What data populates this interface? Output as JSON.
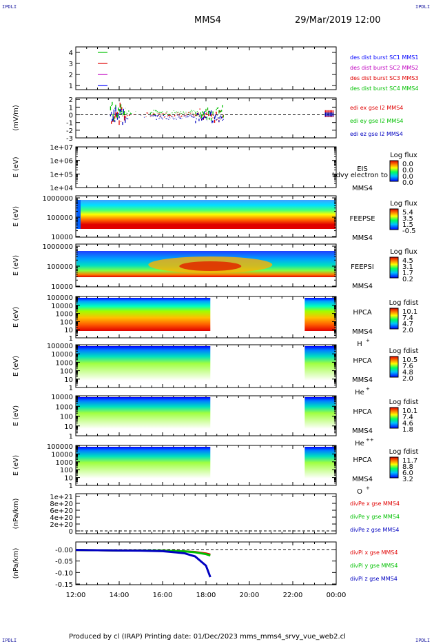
{
  "corner_labels": {
    "top_left": "IPDLI",
    "top_right": "IPDLI",
    "bottom_left": "IPDLI",
    "bottom_right": "IPDLI"
  },
  "title": {
    "spacecraft": "MMS4",
    "datetime": "29/Mar/2019 12:00"
  },
  "footer": "Produced by cl (IRAP)   Printing date: 01/Dec/2023   mms_mms4_srvy_vue_web2.cl",
  "colors": {
    "red": "#e00000",
    "green": "#00c000",
    "blue": "#0000c0",
    "magenta": "#c000c0"
  },
  "chart_data": [
    {
      "type": "line",
      "panel": "burst",
      "yticks": [
        "4",
        "3",
        "2",
        "1"
      ],
      "series": [
        {
          "name": "des dist burst SC1 MMS1",
          "color": "#0000ff",
          "level": 1
        },
        {
          "name": "des dist burst SC2 MMS2",
          "color": "#c000c0",
          "level": 2
        },
        {
          "name": "des dist burst SC3 MMS3",
          "color": "#e00000",
          "level": 3
        },
        {
          "name": "des dist burst SC4 MMS4",
          "color": "#00c000",
          "level": 4
        }
      ]
    },
    {
      "type": "line",
      "panel": "edi",
      "ylabel": "(mV/m)",
      "yticks": [
        "2",
        "1",
        "0",
        "-1",
        "-2",
        "-3"
      ],
      "ylim": [
        -3,
        2.2
      ],
      "series": [
        {
          "name": "edi ex gse l2 MMS4",
          "color": "#e00000"
        },
        {
          "name": "edi ey gse l2 MMS4",
          "color": "#00c000"
        },
        {
          "name": "edi ez gse l2 MMS4",
          "color": "#0000c0"
        }
      ]
    },
    {
      "type": "heatmap",
      "panel": "eis",
      "ylabel": "E (eV)",
      "yticks": [
        "1e+07",
        "1e+06",
        "1e+05",
        "1e+04"
      ],
      "labels": [
        "EIS",
        "MMS4"
      ],
      "overlay_label": "Ldvy electron to",
      "colorbar": {
        "title": "Log flux",
        "ticks": [
          "0.0",
          "0.0",
          "0.0",
          "0.0"
        ]
      }
    },
    {
      "type": "heatmap",
      "panel": "feepse",
      "ylabel": "E (eV)",
      "yticks": [
        "1000000",
        "100000",
        "10000"
      ],
      "labels": [
        "FEEPSE",
        "MMS4"
      ],
      "colorbar": {
        "title": "Log flux",
        "ticks": [
          "5.4",
          "3.5",
          "1.5",
          "-0.5"
        ]
      }
    },
    {
      "type": "heatmap",
      "panel": "feepsi",
      "ylabel": "E (eV)",
      "yticks": [
        "1000000",
        "100000",
        "10000"
      ],
      "labels": [
        "FEEPSI",
        "MMS4"
      ],
      "colorbar": {
        "title": "Log flux",
        "ticks": [
          "4.5",
          "3.1",
          "1.7",
          "0.2"
        ]
      }
    },
    {
      "type": "heatmap",
      "panel": "hpca-h",
      "ylabel": "E (eV)",
      "yticks": [
        "100000",
        "10000",
        "1000",
        "100",
        "10",
        "1"
      ],
      "labels": [
        "HPCA",
        "MMS4",
        "H",
        "+"
      ],
      "colorbar": {
        "title": "Log fdist",
        "ticks": [
          "10.1",
          "7.4",
          "4.7",
          "2.0"
        ]
      }
    },
    {
      "type": "heatmap",
      "panel": "hpca-he",
      "ylabel": "E (eV)",
      "yticks": [
        "100000",
        "10000",
        "1000",
        "100",
        "10",
        "1"
      ],
      "labels": [
        "HPCA",
        "MMS4",
        "He",
        "+"
      ],
      "colorbar": {
        "title": "Log fdist",
        "ticks": [
          "10.5",
          "7.6",
          "4.8",
          "2.0"
        ]
      }
    },
    {
      "type": "heatmap",
      "panel": "hpca-he2",
      "ylabel": "E (eV)",
      "yticks": [
        "10000",
        "1000",
        "100",
        "10",
        "1"
      ],
      "labels": [
        "HPCA",
        "MMS4",
        "He",
        "++"
      ],
      "colorbar": {
        "title": "Log fdist",
        "ticks": [
          "10.1",
          "7.4",
          "4.6",
          "1.8"
        ]
      }
    },
    {
      "type": "heatmap",
      "panel": "hpca-o",
      "ylabel": "E (eV)",
      "yticks": [
        "100000",
        "10000",
        "1000",
        "100",
        "10",
        "1"
      ],
      "labels": [
        "HPCA",
        "MMS4",
        "O",
        "+"
      ],
      "colorbar": {
        "title": "Log fdist",
        "ticks": [
          "11.7",
          "8.8",
          "6.0",
          "3.2"
        ]
      }
    },
    {
      "type": "line",
      "panel": "divpe",
      "ylabel": "(nPa/km)",
      "yticks": [
        "1e+21",
        "8e+20",
        "6e+20",
        "4e+20",
        "2e+20",
        "0"
      ],
      "series": [
        {
          "name": "divPe x gse MMS4",
          "color": "#e00000"
        },
        {
          "name": "divPe y gse MMS4",
          "color": "#00c000"
        },
        {
          "name": "divPe z gse MMS4",
          "color": "#0000c0"
        }
      ]
    },
    {
      "type": "line",
      "panel": "divpi",
      "ylabel": "(nPa/km)",
      "yticks": [
        "-0.00",
        "-0.05",
        "-0.10",
        "-0.15"
      ],
      "ylim": [
        -0.15,
        0.0
      ],
      "series": [
        {
          "name": "divPi x gse MMS4",
          "color": "#e00000",
          "x": [
            12,
            13,
            14,
            15,
            16,
            17,
            17.5,
            18,
            18.2
          ],
          "y": [
            -0.002,
            -0.003,
            -0.004,
            -0.004,
            -0.005,
            -0.008,
            -0.011,
            -0.017,
            -0.022
          ]
        },
        {
          "name": "divPi y gse MMS4",
          "color": "#00c000",
          "x": [
            12,
            13,
            14,
            15,
            16,
            17,
            17.5,
            18,
            18.2
          ],
          "y": [
            -0.002,
            -0.003,
            -0.004,
            -0.004,
            -0.005,
            -0.008,
            -0.012,
            -0.02,
            -0.026
          ]
        },
        {
          "name": "divPi z gse MMS4",
          "color": "#0000c0",
          "x": [
            12,
            13,
            14,
            15,
            16,
            17,
            17.5,
            18,
            18.2
          ],
          "y": [
            -0.002,
            -0.003,
            -0.004,
            -0.005,
            -0.007,
            -0.016,
            -0.03,
            -0.07,
            -0.12
          ]
        }
      ]
    }
  ],
  "xaxis": {
    "ticks": [
      "12:00",
      "14:00",
      "16:00",
      "18:00",
      "20:00",
      "22:00",
      "00:00"
    ]
  }
}
